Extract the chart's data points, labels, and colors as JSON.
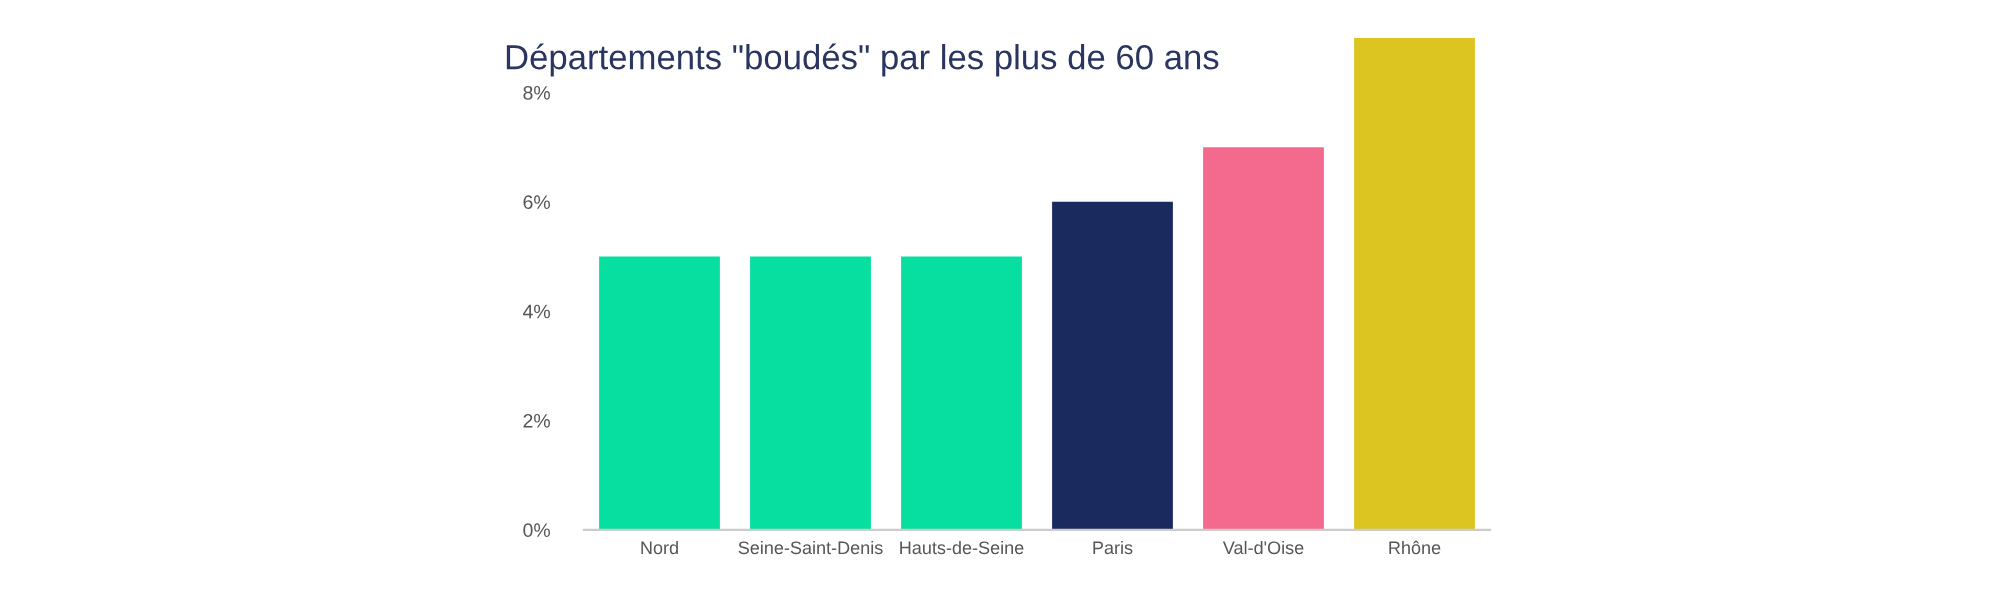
{
  "chart_data": {
    "type": "bar",
    "title": "Départements \"boudés\" par les plus de 60 ans",
    "categories": [
      "Nord",
      "Seine-Saint-Denis",
      "Hauts-de-Seine",
      "Paris",
      "Val-d'Oise",
      "Rhône"
    ],
    "values": [
      5,
      5,
      5,
      6,
      7,
      9
    ],
    "colors": [
      "#06dfa0",
      "#06dfa0",
      "#06dfa0",
      "#1a2a5e",
      "#f46a8f",
      "#dcc520"
    ],
    "ylim": [
      0,
      9
    ],
    "yticks": [
      {
        "value": 0,
        "label": "0%"
      },
      {
        "value": 2,
        "label": "2%"
      },
      {
        "value": 4,
        "label": "4%"
      },
      {
        "value": 6,
        "label": "6%"
      },
      {
        "value": 8,
        "label": "8%"
      }
    ],
    "grid": false
  }
}
